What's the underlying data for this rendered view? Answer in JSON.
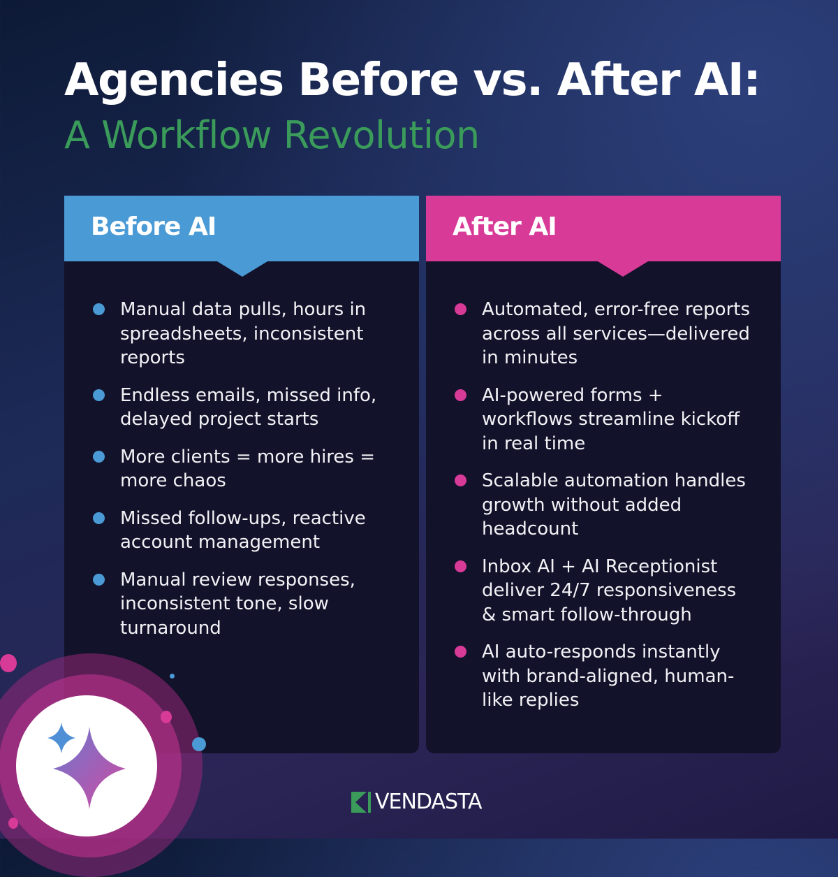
{
  "header": {
    "title": "Agencies Before vs. After AI:",
    "subtitle": "A Workflow Revolution"
  },
  "before": {
    "label": "Before AI",
    "color": "#4a9ad5",
    "items": [
      "Manual data pulls, hours in spreadsheets, inconsistent reports",
      "Endless emails, missed info, delayed project starts",
      "More clients = more hires = more chaos",
      "Missed follow-ups, reactive account management",
      "Manual review responses, inconsistent tone, slow turnaround"
    ]
  },
  "after": {
    "label": "After AI",
    "color": "#d83a97",
    "items": [
      "Automated, error-free reports across all services—delivered in minutes",
      "AI-powered forms + workflows streamline kickoff in real time",
      "Scalable automation handles growth without added headcount",
      "Inbox AI + AI Receptionist deliver 24/7 responsiveness & smart follow-through",
      "AI auto-responds instantly with brand-aligned, human-like replies"
    ]
  },
  "brand": {
    "name": "VENDASTA",
    "accent": "#3a9b5a",
    "icon": "sparkle-icon"
  }
}
